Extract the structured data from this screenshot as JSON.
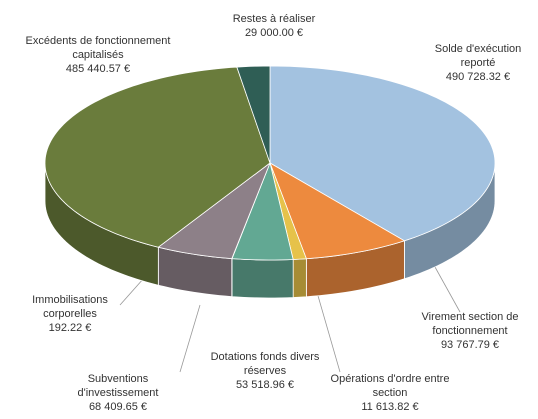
{
  "chart_data": {
    "type": "pie3d",
    "categories": [
      "Solde d'exécution reporté",
      "Virement section de fonctionnement",
      "Opérations d'ordre entre section",
      "Dotations fonds divers réserves",
      "Immobilisations corporelles",
      "Subventions d'investissement",
      "Excédents de fonctionnement capitalisés",
      "Restes à réaliser"
    ],
    "values": [
      490728.32,
      93767.79,
      11613.82,
      53518.96,
      192.22,
      68409.65,
      485440.57,
      29000.0
    ],
    "value_labels": [
      "490 728.32 €",
      "93 767.79 €",
      "11 613.82 €",
      "53 518.96 €",
      "192.22 €",
      "68 409.65 €",
      "485 440.57 €",
      "29 000.00 €"
    ],
    "colors": [
      "#a3c2e0",
      "#ed8a3e",
      "#e6c24a",
      "#62a893",
      "#c0504d",
      "#8d8088",
      "#6a7c3c",
      "#2f5e55"
    ]
  }
}
